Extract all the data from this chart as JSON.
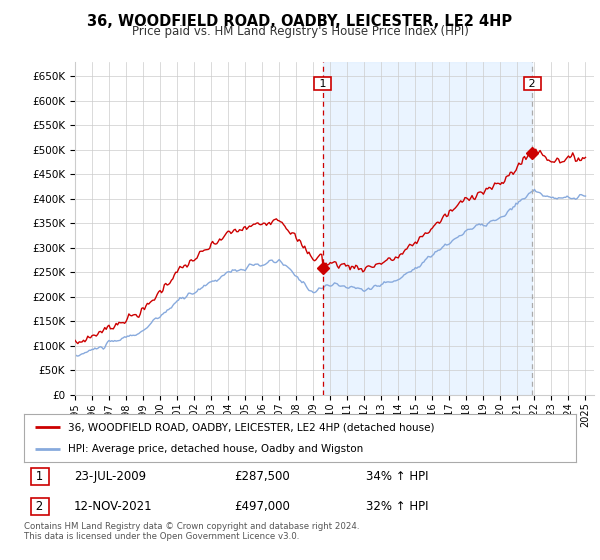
{
  "title": "36, WOODFIELD ROAD, OADBY, LEICESTER, LE2 4HP",
  "subtitle": "Price paid vs. HM Land Registry's House Price Index (HPI)",
  "legend_text": [
    "36, WOODFIELD ROAD, OADBY, LEICESTER, LE2 4HP (detached house)",
    "HPI: Average price, detached house, Oadby and Wigston"
  ],
  "transaction1": {
    "label": "1",
    "date": "23-JUL-2009",
    "price": "£287,500",
    "change": "34% ↑ HPI"
  },
  "transaction2": {
    "label": "2",
    "date": "12-NOV-2021",
    "price": "£497,000",
    "change": "32% ↑ HPI"
  },
  "footnote": "Contains HM Land Registry data © Crown copyright and database right 2024.\nThis data is licensed under the Open Government Licence v3.0.",
  "price_color": "#cc0000",
  "hpi_color": "#88aadd",
  "vline1_color": "#cc0000",
  "vline2_color": "#aaaaaa",
  "shade_color": "#ddeeff",
  "background_color": "#ffffff",
  "grid_color": "#cccccc",
  "ylim": [
    0,
    680000
  ],
  "yticks": [
    0,
    50000,
    100000,
    150000,
    200000,
    250000,
    300000,
    350000,
    400000,
    450000,
    500000,
    550000,
    600000,
    650000
  ],
  "t1_year": 2009.55,
  "t2_year": 2021.87,
  "t1_price": 287500,
  "t2_price": 497000,
  "xstart": 1995,
  "xend": 2025.5
}
